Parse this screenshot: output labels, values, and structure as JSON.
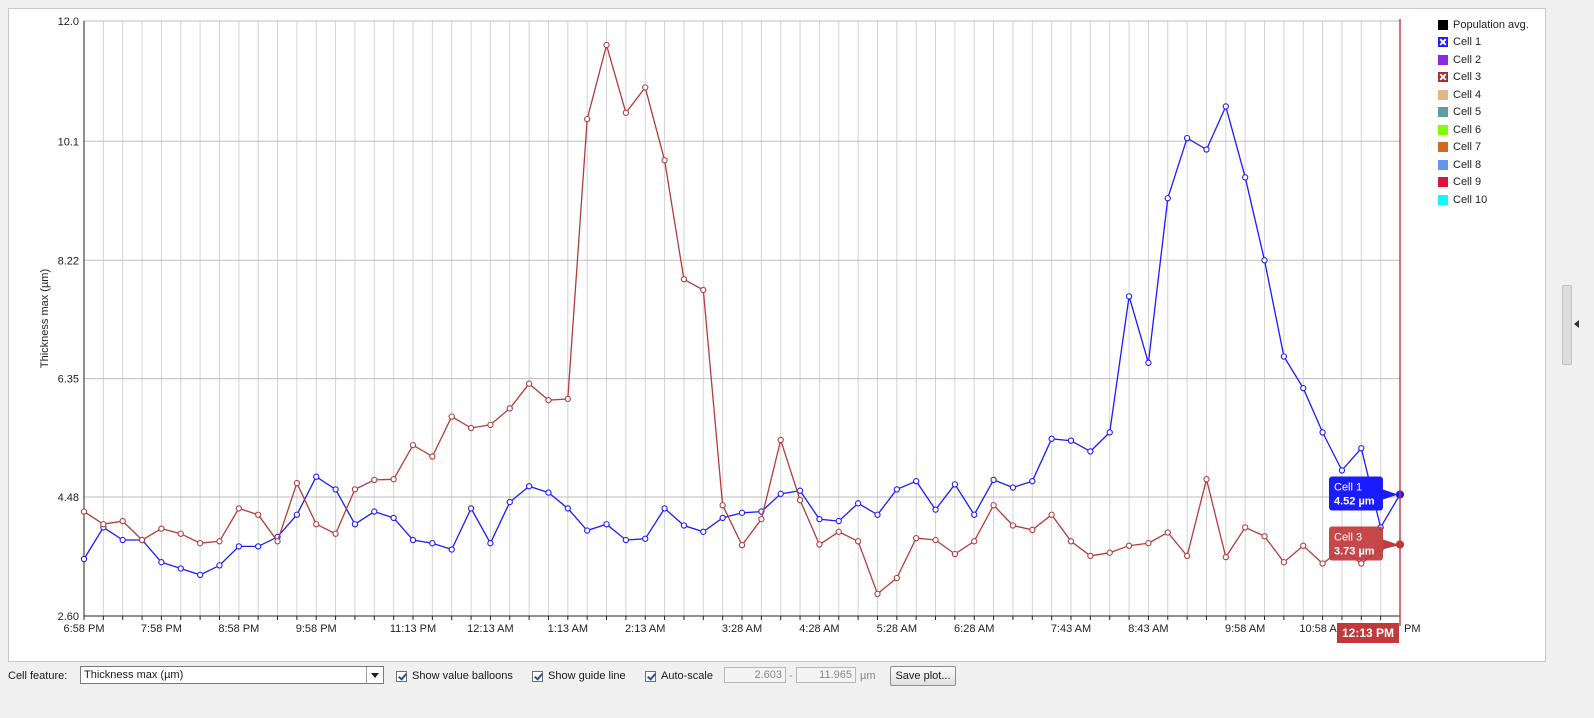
{
  "chart_data": {
    "type": "line",
    "ylabel": "Thickness max (µm)",
    "ylim": [
      2.6,
      12.0
    ],
    "yticks": [
      "2.60",
      "4.48",
      "6.35",
      "8.22",
      "10.1",
      "12.0"
    ],
    "xtick_labels": [
      "6:58 PM",
      "7:58 PM",
      "8:58 PM",
      "9:58 PM",
      "11:13 PM",
      "12:13 AM",
      "1:13 AM",
      "2:13 AM",
      "3:28 AM",
      "4:28 AM",
      "5:28 AM",
      "6:28 AM",
      "7:43 AM",
      "8:43 AM",
      "9:58 AM",
      "10:58 AM",
      "12:13 PM"
    ],
    "grid": true,
    "legend_position": "right",
    "series": [
      {
        "name": "Cell 1",
        "color": "#1b1bff",
        "values": [
          3.5,
          4.0,
          3.8,
          3.8,
          3.45,
          3.35,
          3.25,
          3.4,
          3.7,
          3.7,
          3.85,
          4.2,
          4.8,
          4.6,
          4.05,
          4.25,
          4.15,
          3.8,
          3.75,
          3.65,
          4.3,
          3.75,
          4.4,
          4.65,
          4.55,
          4.3,
          3.95,
          4.05,
          3.8,
          3.82,
          4.3,
          4.03,
          3.93,
          4.15,
          4.23,
          4.25,
          4.53,
          4.58,
          4.13,
          4.1,
          4.38,
          4.2,
          4.6,
          4.73,
          4.28,
          4.68,
          4.2,
          4.75,
          4.63,
          4.73,
          5.4,
          5.37,
          5.2,
          5.5,
          7.65,
          6.6,
          9.2,
          10.15,
          9.97,
          10.65,
          9.53,
          8.22,
          6.7,
          6.2,
          5.5,
          4.9,
          5.25,
          4.0,
          4.52
        ]
      },
      {
        "name": "Cell 3",
        "color": "#b33c3c",
        "values": [
          4.25,
          4.05,
          4.1,
          3.8,
          3.98,
          3.9,
          3.75,
          3.78,
          4.3,
          4.2,
          3.78,
          4.7,
          4.05,
          3.9,
          4.6,
          4.75,
          4.76,
          5.3,
          5.12,
          5.75,
          5.57,
          5.62,
          5.88,
          6.27,
          6.01,
          6.03,
          10.45,
          11.62,
          10.55,
          10.95,
          9.8,
          7.92,
          7.75,
          4.35,
          3.72,
          4.13,
          5.38,
          4.43,
          3.73,
          3.93,
          3.78,
          2.95,
          3.2,
          3.83,
          3.8,
          3.58,
          3.78,
          4.35,
          4.03,
          3.96,
          4.2,
          3.78,
          3.55,
          3.6,
          3.71,
          3.75,
          3.92,
          3.55,
          4.76,
          3.53,
          4.0,
          3.86,
          3.45,
          3.71,
          3.43,
          3.65,
          3.43,
          3.66,
          3.73
        ]
      }
    ],
    "balloons": [
      {
        "series": "Cell 1",
        "title": "Cell 1",
        "value": "4.52 µm"
      },
      {
        "series": "Cell 3",
        "title": "Cell 3",
        "value": "3.73 µm"
      }
    ],
    "guide_line_label": "12:13 PM",
    "partial_tick_text": "PM"
  },
  "legend": {
    "items": [
      {
        "label": "Population avg.",
        "color": "#000000",
        "checked": false
      },
      {
        "label": "Cell 1",
        "color": "#1b1bff",
        "checked": true
      },
      {
        "label": "Cell 2",
        "color": "#8a2be2",
        "checked": false
      },
      {
        "label": "Cell 3",
        "color": "#a52a2a",
        "checked": true
      },
      {
        "label": "Cell 4",
        "color": "#deb887",
        "checked": false
      },
      {
        "label": "Cell 5",
        "color": "#5f9ea0",
        "checked": false
      },
      {
        "label": "Cell 6",
        "color": "#7fff00",
        "checked": false
      },
      {
        "label": "Cell 7",
        "color": "#d2691e",
        "checked": false
      },
      {
        "label": "Cell 8",
        "color": "#6495ed",
        "checked": false
      },
      {
        "label": "Cell 9",
        "color": "#dc143c",
        "checked": false
      },
      {
        "label": "Cell 10",
        "color": "#00ffff",
        "checked": false
      }
    ]
  },
  "controls": {
    "cell_feature_label": "Cell feature:",
    "cell_feature_value": "Thickness max (µm)",
    "show_value_balloons": {
      "label": "Show value balloons",
      "checked": true
    },
    "show_guide_line": {
      "label": "Show guide line",
      "checked": true
    },
    "auto_scale": {
      "label": "Auto-scale",
      "checked": true
    },
    "range_min": "2.603",
    "range_sep": "-",
    "range_max": "11.965",
    "range_unit": "µm",
    "save_button": "Save plot..."
  }
}
